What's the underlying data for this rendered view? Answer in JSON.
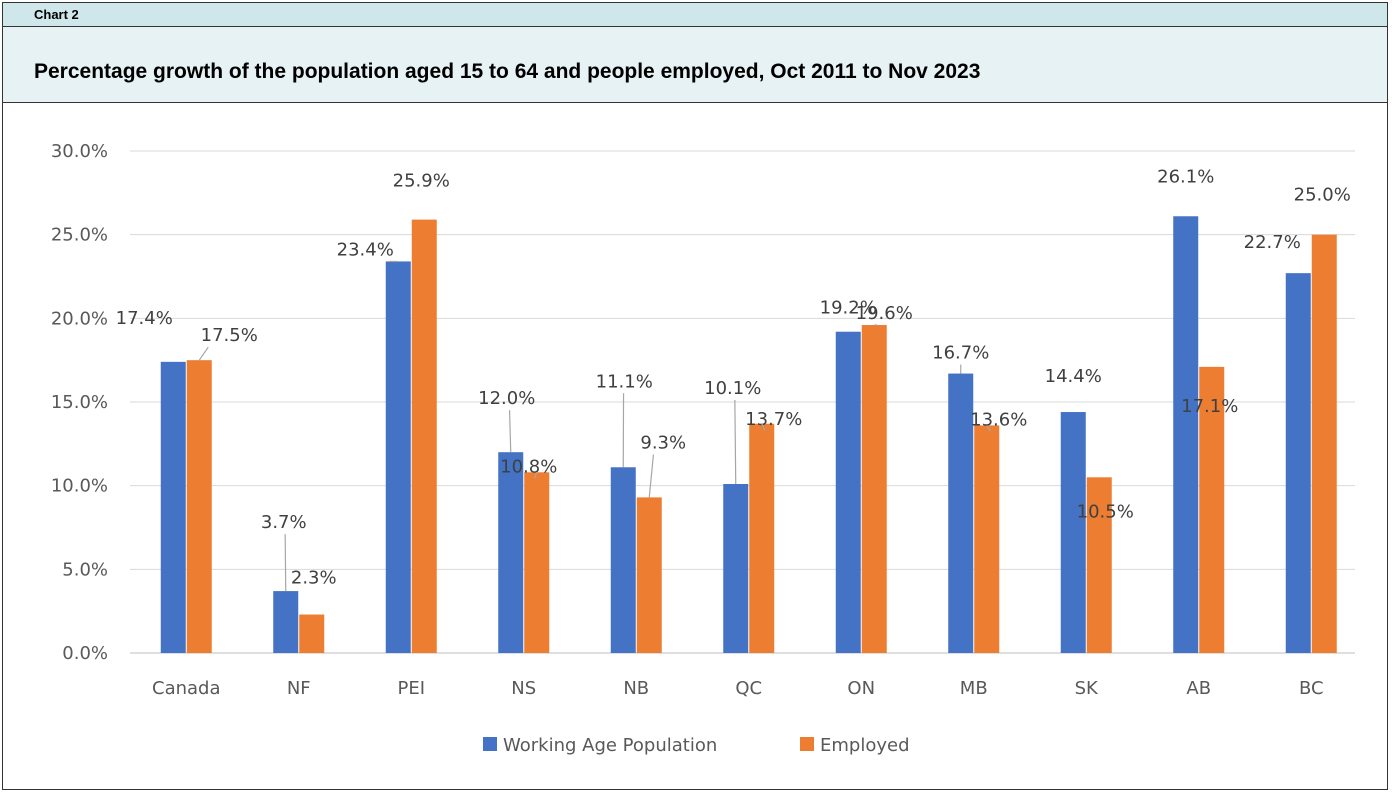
{
  "header": {
    "chart_label": "Chart 2",
    "title": "Percentage growth of the population aged 15 to 64 and people employed, Oct 2011 to Nov 2023"
  },
  "colors": {
    "working_age": "#4472c4",
    "employed": "#ed7d31",
    "gridline": "#d9d9d9",
    "label_bar": "#cfe7ea",
    "title_bar": "#e6f2f3"
  },
  "chart_data": {
    "type": "bar",
    "title": "Percentage growth of the population aged 15 to 64 and people employed, Oct 2011 to Nov 2023",
    "xlabel": "",
    "ylabel": "",
    "categories": [
      "Canada",
      "NF",
      "PEI",
      "NS",
      "NB",
      "QC",
      "ON",
      "MB",
      "SK",
      "AB",
      "BC"
    ],
    "series": [
      {
        "name": "Working Age Population",
        "values": [
          17.4,
          3.7,
          23.4,
          12.0,
          11.1,
          10.1,
          19.2,
          16.7,
          14.4,
          26.1,
          22.7
        ],
        "labels": [
          "17.4%",
          "3.7%",
          "23.4%",
          "12.0%",
          "11.1%",
          "10.1%",
          "19.2%",
          "16.7%",
          "14.4%",
          "26.1%",
          "22.7%"
        ]
      },
      {
        "name": "Employed",
        "values": [
          17.5,
          2.3,
          25.9,
          10.8,
          9.3,
          13.7,
          19.6,
          13.6,
          10.5,
          17.1,
          25.0
        ],
        "labels": [
          "17.5%",
          "2.3%",
          "25.9%",
          "10.8%",
          "9.3%",
          "13.7%",
          "19.6%",
          "13.6%",
          "10.5%",
          "17.1%",
          "25.0%"
        ]
      }
    ],
    "ylim": [
      0,
      30
    ],
    "yticks": [
      "0.0%",
      "5.0%",
      "10.0%",
      "15.0%",
      "20.0%",
      "25.0%",
      "30.0%"
    ],
    "grid": true,
    "legend_position": "bottom"
  }
}
